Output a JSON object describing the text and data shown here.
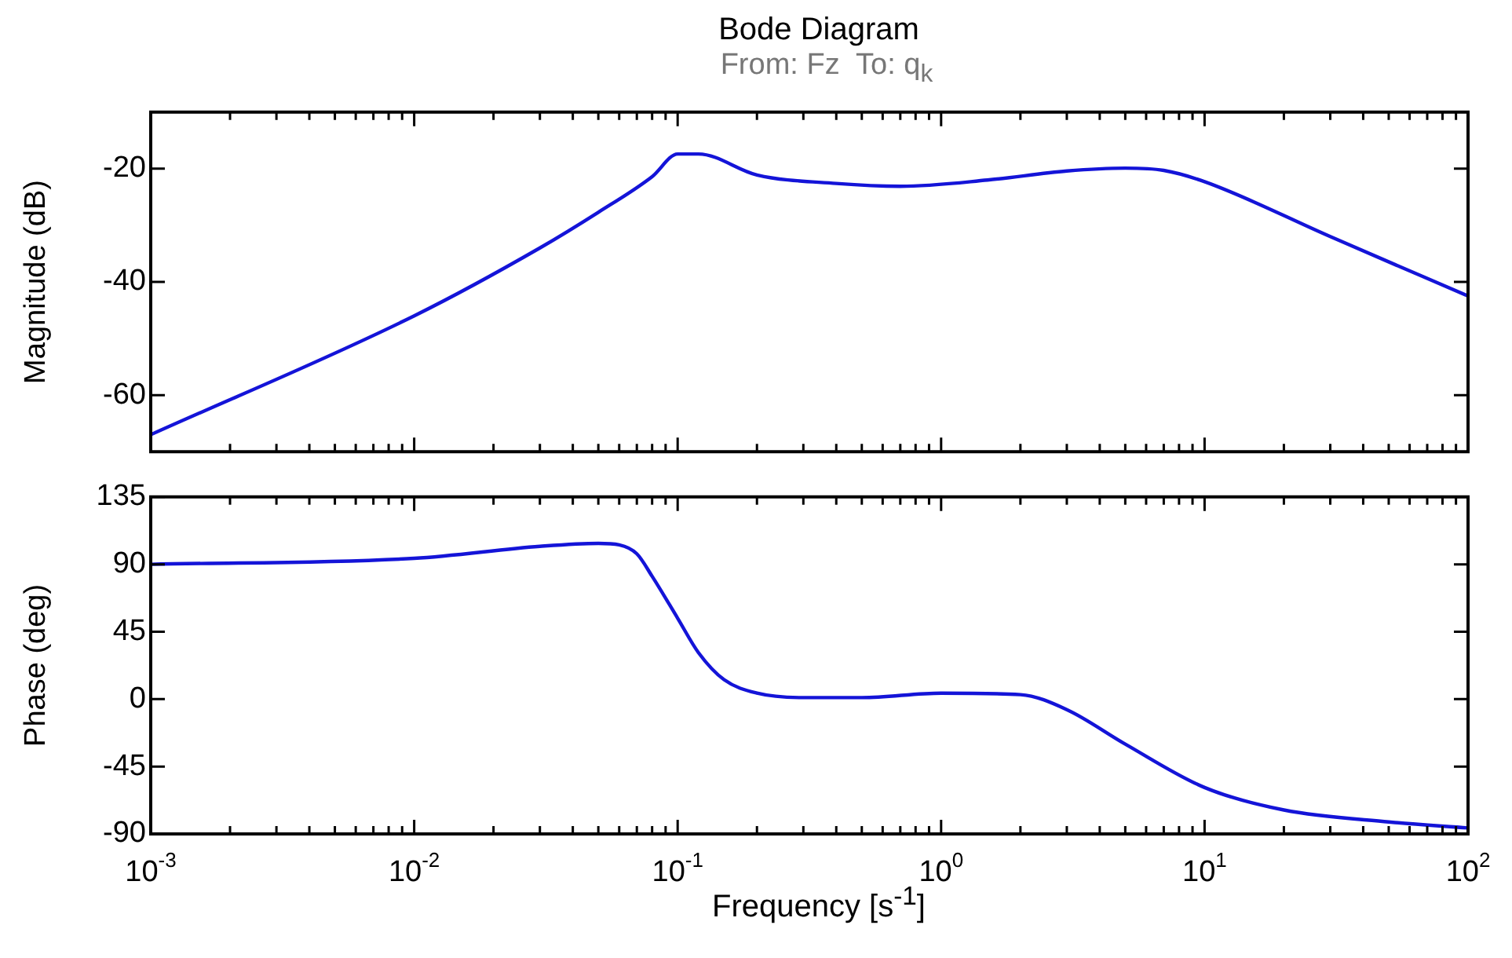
{
  "chart_data": [
    {
      "type": "line",
      "title": "Bode Diagram",
      "subtitle": "From: Fz  To: q$_{k}$",
      "ylabel": "Magnitude (dB)",
      "color": "#1414d8",
      "log": "x",
      "tick_labels": "y",
      "x": [
        0.001,
        0.01,
        0.03,
        0.05,
        0.08,
        0.1,
        0.12,
        0.2,
        0.4,
        0.7,
        1.5,
        3,
        5,
        7,
        10,
        30,
        100
      ],
      "values": [
        -67,
        -46,
        -34,
        -27.7,
        -21.4,
        -17.4,
        -17.4,
        -21.1,
        -22.6,
        -23.1,
        -22,
        -20.4,
        -19.9,
        -20.3,
        -22.3,
        -32,
        -42.5
      ],
      "xlim": [
        0.001,
        100
      ],
      "xticks": [
        {
          "value": 0.001,
          "label": null
        },
        {
          "value": 0.01,
          "label": null
        },
        {
          "value": 0.1,
          "label": null
        },
        {
          "value": 1,
          "label": null
        },
        {
          "value": 10,
          "label": null
        },
        {
          "value": 100,
          "label": null
        }
      ],
      "ylim": [
        -70,
        -10
      ],
      "yticks": [
        -60,
        -40,
        -20
      ]
    },
    {
      "type": "line",
      "xlabel": "Frequency [s$^{-1}$]",
      "ylabel": "Phase (deg)",
      "color": "#1414d8",
      "log": "x",
      "x": [
        0.001,
        0.01,
        0.03,
        0.05,
        0.06,
        0.07,
        0.08,
        0.1,
        0.12,
        0.15,
        0.2,
        0.3,
        0.5,
        1,
        2,
        3,
        5,
        10,
        20,
        50,
        100
      ],
      "values": [
        90,
        94,
        102,
        104,
        103,
        97,
        82,
        54,
        31,
        13,
        4,
        1,
        1,
        4,
        3,
        -7,
        -30,
        -59,
        -74,
        -82,
        -86
      ],
      "xlim": [
        0.001,
        100
      ],
      "xticks": [
        {
          "value": 0.001,
          "label": "10$^{-3}$"
        },
        {
          "value": 0.01,
          "label": "10$^{-2}$"
        },
        {
          "value": 0.1,
          "label": "10$^{-1}$"
        },
        {
          "value": 1,
          "label": "10$^{0}$"
        },
        {
          "value": 10,
          "label": "10$^{1}$"
        },
        {
          "value": 100,
          "label": "10$^{2}$"
        }
      ],
      "ylim": [
        -90,
        135
      ],
      "yticks": [
        -90,
        -45,
        0,
        45,
        90,
        135
      ]
    }
  ]
}
